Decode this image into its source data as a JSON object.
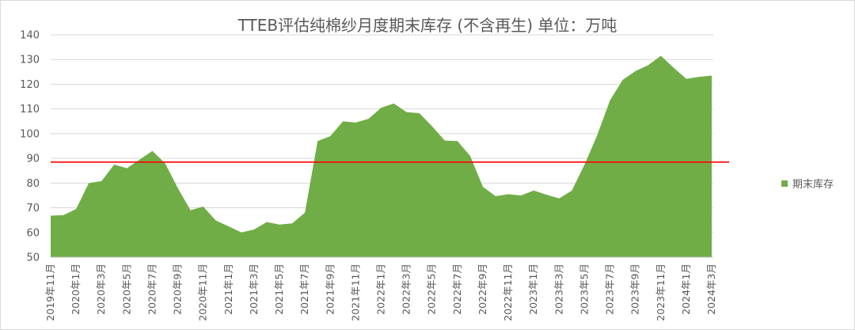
{
  "chart_data": {
    "type": "area",
    "title": "TTEB评估纯棉纱月度期末库存 (不含再生)  单位：万吨",
    "ylim": [
      50,
      140
    ],
    "yticks": [
      50,
      60,
      70,
      80,
      90,
      100,
      110,
      120,
      130,
      140
    ],
    "grid": true,
    "legend_position": "right",
    "reference_line": {
      "value": 88.5,
      "color": "#ff0000"
    },
    "x": [
      "2019年11月",
      "2019年12月",
      "2020年1月",
      "2020年2月",
      "2020年3月",
      "2020年4月",
      "2020年5月",
      "2020年6月",
      "2020年7月",
      "2020年8月",
      "2020年9月",
      "2020年10月",
      "2020年11月",
      "2020年12月",
      "2021年1月",
      "2021年2月",
      "2021年3月",
      "2021年4月",
      "2021年5月",
      "2021年6月",
      "2021年7月",
      "2021年8月",
      "2021年9月",
      "2021年10月",
      "2021年11月",
      "2021年12月",
      "2022年1月",
      "2022年2月",
      "2022年3月",
      "2022年4月",
      "2022年5月",
      "2022年6月",
      "2022年7月",
      "2022年8月",
      "2022年9月",
      "2022年10月",
      "2022年11月",
      "2022年12月",
      "2023年1月",
      "2023年2月",
      "2023年3月",
      "2023年4月",
      "2023年5月",
      "2023年6月",
      "2023年7月",
      "2023年8月",
      "2023年9月",
      "2023年10月",
      "2023年11月",
      "2023年12月",
      "2024年1月",
      "2024年2月",
      "2024年3月"
    ],
    "xtick_labels": [
      "2019年11月",
      "2020年1月",
      "2020年3月",
      "2020年5月",
      "2020年7月",
      "2020年9月",
      "2020年11月",
      "2021年1月",
      "2021年3月",
      "2021年5月",
      "2021年7月",
      "2021年9月",
      "2021年11月",
      "2022年1月",
      "2022年3月",
      "2022年5月",
      "2022年7月",
      "2022年9月",
      "2022年11月",
      "2023年1月",
      "2023年3月",
      "2023年5月",
      "2023年7月",
      "2023年9月",
      "2023年11月",
      "2024年1月",
      "2024年3月"
    ],
    "series": [
      {
        "name": "期末库存",
        "color": "#70ad47",
        "values": [
          66.8,
          67.0,
          69.5,
          80.0,
          80.8,
          87.5,
          86.0,
          89.5,
          93.0,
          88.0,
          78.0,
          69.0,
          70.5,
          64.8,
          62.5,
          60.0,
          61.2,
          64.2,
          63.2,
          63.7,
          68.0,
          97.0,
          99.0,
          105.0,
          104.5,
          106.0,
          110.5,
          112.2,
          108.7,
          108.3,
          103.0,
          97.2,
          97.0,
          91.0,
          78.5,
          74.7,
          75.5,
          75.0,
          77.0,
          75.3,
          73.8,
          77.0,
          87.5,
          99.5,
          113.5,
          121.8,
          125.3,
          127.7,
          131.5,
          126.7,
          122.2,
          123.0,
          123.5
        ]
      }
    ]
  }
}
